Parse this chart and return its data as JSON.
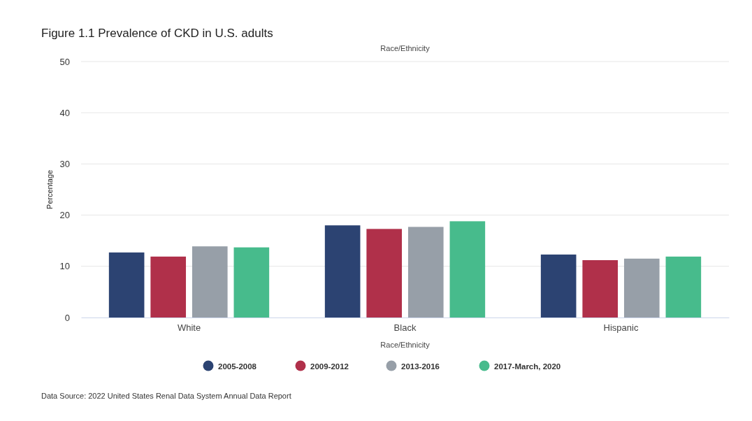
{
  "chart_data": {
    "type": "bar",
    "title": "Figure 1.1 Prevalence of CKD in U.S. adults",
    "subtitle": "Race/Ethnicity",
    "xlabel": "Race/Ethnicity",
    "ylabel": "Percentage",
    "categories": [
      "White",
      "Black",
      "Hispanic"
    ],
    "series": [
      {
        "name": "2005-2008",
        "color": "#2c4372",
        "values": [
          12.7,
          18.0,
          12.3
        ]
      },
      {
        "name": "2009-2012",
        "color": "#b0304a",
        "values": [
          11.9,
          17.3,
          11.2
        ]
      },
      {
        "name": "2013-2016",
        "color": "#979fa8",
        "values": [
          13.9,
          17.7,
          11.5
        ]
      },
      {
        "name": "2017-March, 2020",
        "color": "#47bb8c",
        "values": [
          13.7,
          18.8,
          11.9
        ]
      }
    ],
    "ylim": [
      0,
      50
    ],
    "yticks": [
      0,
      10,
      20,
      30,
      40,
      50
    ],
    "grid": "y",
    "legend": "bottom",
    "annotations": [
      "Data Source: 2022 United States Renal Data System Annual Data Report"
    ]
  }
}
